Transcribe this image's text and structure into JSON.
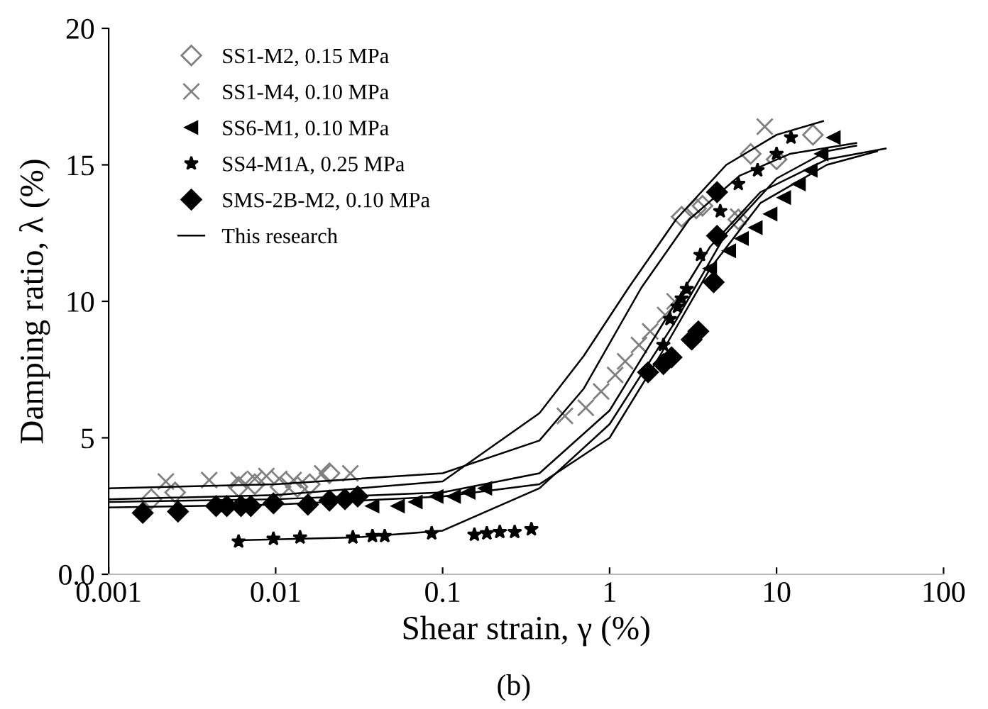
{
  "chart_data": {
    "type": "scatter",
    "xlabel": "Shear strain, γ (%)",
    "ylabel": "Damping ratio, λ (%)",
    "log": "x",
    "xlim": [
      0.001,
      100
    ],
    "ylim": [
      0,
      20
    ],
    "xticks": [
      0.001,
      0.01,
      0.1,
      1,
      10,
      100
    ],
    "yticks": [
      {
        "value": 0,
        "label": "0.0"
      },
      5,
      10,
      15,
      20
    ],
    "grid": false,
    "legend": "top left",
    "annotations": [
      "(b)"
    ],
    "series": [
      {
        "name": "SS1-M2, 0.15 MPa",
        "marker": "diamond",
        "color": "#808080",
        "x": [
          0.0018,
          0.0025,
          0.006,
          0.0075,
          0.0107,
          0.0135,
          0.016,
          0.021,
          2.7,
          3.3,
          3.6,
          5.9,
          7.0,
          10,
          16.5
        ],
        "values": [
          2.75,
          3.0,
          3.2,
          3.3,
          3.2,
          3.2,
          3.3,
          3.7,
          13.1,
          13.4,
          13.5,
          13.0,
          15.4,
          15.2,
          16.1
        ]
      },
      {
        "name": "SS1-M4, 0.10 MPa",
        "marker": "cross",
        "color": "#808080",
        "x": [
          0.0022,
          0.004,
          0.006,
          0.0075,
          0.0088,
          0.0105,
          0.0128,
          0.019,
          0.028,
          0.54,
          0.72,
          0.89,
          1.08,
          1.24,
          1.5,
          1.75,
          2.15,
          2.45,
          5.9,
          8.5
        ],
        "values": [
          3.4,
          3.45,
          3.45,
          3.5,
          3.6,
          3.5,
          3.45,
          3.7,
          3.7,
          5.8,
          6.1,
          6.7,
          7.3,
          7.8,
          8.4,
          8.9,
          9.5,
          10.0,
          13.1,
          16.4
        ]
      },
      {
        "name": "SS6-M1, 0.10 MPa",
        "marker": "triangle",
        "color": "#000000",
        "x": [
          0.038,
          0.054,
          0.069,
          0.092,
          0.117,
          0.143,
          0.18,
          4.0,
          5.2,
          6.2,
          7.5,
          9.2,
          11.1,
          13.6,
          16,
          18.6,
          22
        ],
        "values": [
          2.5,
          2.5,
          2.65,
          2.85,
          2.85,
          3.0,
          3.15,
          11.2,
          11.85,
          12.3,
          12.7,
          13.2,
          13.8,
          14.3,
          14.8,
          15.4,
          16.0
        ]
      },
      {
        "name": "SS4-M1A, 0.25 MPa",
        "marker": "star",
        "color": "#000000",
        "x": [
          0.006,
          0.0097,
          0.014,
          0.029,
          0.038,
          0.045,
          0.086,
          0.155,
          0.184,
          0.22,
          0.27,
          0.34,
          2.1,
          2.3,
          2.55,
          2.7,
          2.9,
          3.5,
          4.6,
          5.9,
          7.7,
          10.0,
          12.2
        ],
        "values": [
          1.2,
          1.3,
          1.35,
          1.35,
          1.4,
          1.4,
          1.5,
          1.45,
          1.5,
          1.55,
          1.55,
          1.65,
          8.4,
          9.35,
          9.8,
          10.1,
          10.45,
          11.7,
          13.3,
          14.3,
          14.8,
          15.4,
          16.0
        ]
      },
      {
        "name": "SMS-2B-M2, 0.10 MPa",
        "marker": "diamond",
        "color": "#000000",
        "x": [
          0.0016,
          0.0026,
          0.0044,
          0.0051,
          0.0062,
          0.0071,
          0.0097,
          0.0156,
          0.021,
          0.026,
          0.031,
          1.7,
          2.1,
          2.35,
          3.1,
          3.4,
          4.2,
          4.4,
          4.4
        ],
        "values": [
          2.25,
          2.3,
          2.5,
          2.5,
          2.5,
          2.5,
          2.6,
          2.55,
          2.7,
          2.75,
          2.85,
          7.4,
          7.7,
          7.95,
          8.6,
          8.9,
          10.7,
          12.4,
          14.0
        ]
      },
      {
        "name": "This research",
        "type": "line",
        "line_style": "solid",
        "color": "#000000",
        "x": [
          0.001,
          0.01,
          0.1,
          0.38,
          0.7,
          1.3,
          2.5,
          5,
          10,
          19
        ],
        "values": [
          2.75,
          2.9,
          3.4,
          5.9,
          8.0,
          10.5,
          13.0,
          15.0,
          16.1,
          16.6
        ]
      },
      {
        "type": "line",
        "line_style": "solid",
        "color": "#000000",
        "x": [
          0.001,
          0.01,
          0.1,
          0.38,
          0.7,
          1.55,
          3,
          6,
          12,
          30
        ],
        "values": [
          3.15,
          3.3,
          3.7,
          4.9,
          6.8,
          10.5,
          13.0,
          14.6,
          15.4,
          15.8
        ]
      },
      {
        "type": "line",
        "line_style": "solid",
        "color": "#000000",
        "x": [
          0.001,
          0.01,
          0.1,
          0.38,
          1,
          2,
          4,
          8,
          20,
          45
        ],
        "values": [
          2.65,
          2.75,
          3.0,
          3.7,
          6.0,
          9.0,
          12.0,
          14.0,
          15.2,
          15.6
        ]
      },
      {
        "type": "line",
        "line_style": "solid",
        "color": "#000000",
        "x": [
          0.001,
          0.01,
          0.1,
          0.38,
          1,
          2,
          4,
          8,
          20,
          40
        ],
        "values": [
          2.45,
          2.55,
          2.85,
          3.3,
          5.0,
          8.0,
          11.2,
          13.6,
          15.0,
          15.5
        ]
      },
      {
        "type": "line",
        "line_style": "solid",
        "color": "#000000",
        "x": [
          0.006,
          0.03,
          0.1,
          0.38,
          1,
          2.5,
          5,
          10,
          20,
          30
        ],
        "values": [
          1.25,
          1.35,
          1.6,
          3.15,
          5.5,
          9.3,
          12.5,
          14.5,
          15.5,
          15.7
        ]
      }
    ]
  }
}
